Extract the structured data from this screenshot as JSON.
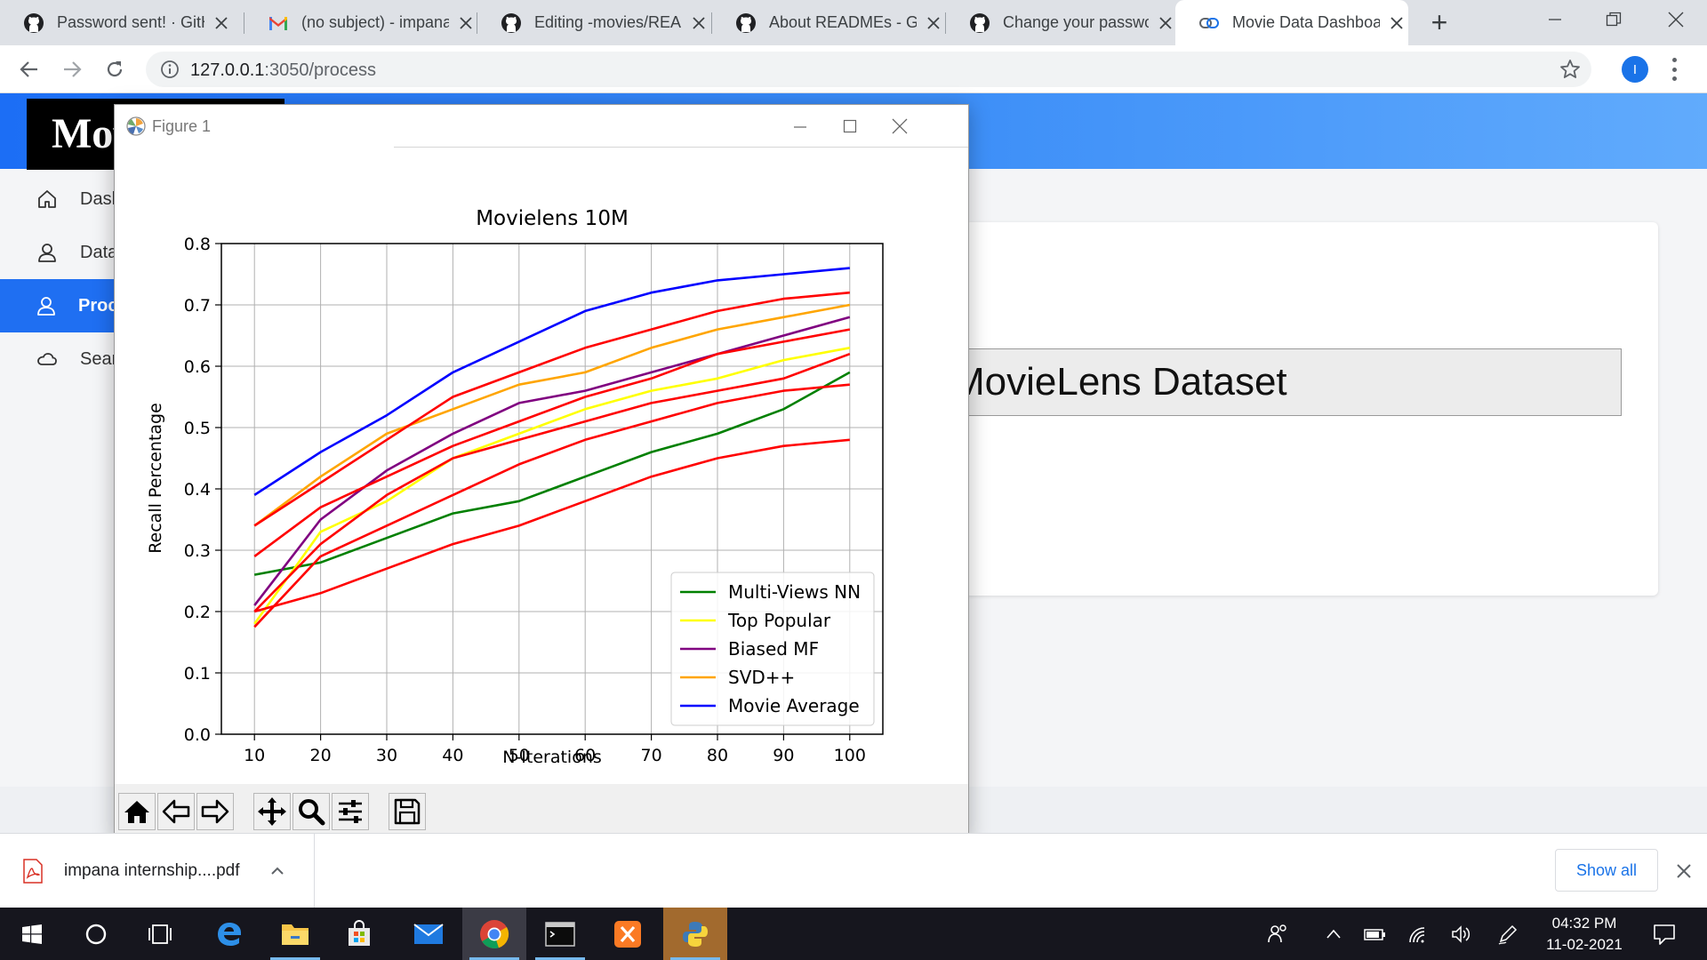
{
  "browser": {
    "tabs": [
      {
        "title": "Password sent! · GitHub",
        "icon": "github-icon",
        "active": false
      },
      {
        "title": "(no subject) - impana",
        "icon": "gmail-icon",
        "active": false
      },
      {
        "title": "Editing -movies/README",
        "icon": "github-icon",
        "active": false
      },
      {
        "title": "About READMEs - GitHub",
        "icon": "github-icon",
        "active": false
      },
      {
        "title": "Change your password",
        "icon": "github-icon",
        "active": false
      },
      {
        "title": "Movie Data Dashboard",
        "icon": "link-icon",
        "active": true
      }
    ],
    "url_host": "127.0.0.1",
    "url_path": ":3050/process",
    "profile_initial": "I"
  },
  "page": {
    "logo_text": "Movie",
    "sidebar": [
      {
        "label": "Dashboard",
        "icon": "home-icon",
        "active": false
      },
      {
        "label": "Dataset",
        "icon": "user-icon",
        "active": false
      },
      {
        "label": "Process",
        "icon": "user-icon",
        "active": true
      },
      {
        "label": "Search",
        "icon": "cloud-icon",
        "active": false
      }
    ],
    "dataset_label": "MovieLens Dataset",
    "accent_color": "#1f6ff2"
  },
  "figure_window": {
    "title": "Figure 1",
    "toolbar": [
      "home-icon",
      "back-arrow-icon",
      "forward-arrow-icon",
      "pan-icon",
      "zoom-icon",
      "configure-subplots-icon",
      "save-icon"
    ]
  },
  "chart_data": {
    "type": "line",
    "title": "Movielens 10M",
    "xlabel": "N-Iterations",
    "ylabel": "Recall Percentage",
    "x": [
      10,
      20,
      30,
      40,
      50,
      60,
      70,
      80,
      90,
      100
    ],
    "xlim": [
      5,
      105
    ],
    "ylim": [
      0.0,
      0.8
    ],
    "yticks": [
      "0.0",
      "0.1",
      "0.2",
      "0.3",
      "0.4",
      "0.5",
      "0.6",
      "0.7",
      "0.8"
    ],
    "grid": true,
    "legend_position": "lower-right",
    "series": [
      {
        "name": "Multi-Views NN",
        "color": "#008000",
        "values": [
          0.26,
          0.28,
          0.32,
          0.36,
          0.38,
          0.42,
          0.46,
          0.49,
          0.53,
          0.59
        ]
      },
      {
        "name": "Top Popular",
        "color": "#ffff00",
        "values": [
          0.18,
          0.33,
          0.38,
          0.45,
          0.49,
          0.53,
          0.56,
          0.58,
          0.61,
          0.63
        ]
      },
      {
        "name": "Biased MF",
        "color": "#800080",
        "values": [
          0.21,
          0.35,
          0.43,
          0.49,
          0.54,
          0.56,
          0.59,
          0.62,
          0.65,
          0.68
        ]
      },
      {
        "name": "SVD++",
        "color": "#ffa500",
        "values": [
          0.34,
          0.42,
          0.49,
          0.53,
          0.57,
          0.59,
          0.63,
          0.66,
          0.68,
          0.7
        ]
      },
      {
        "name": "Movie Average",
        "color": "#0000ff",
        "values": [
          0.39,
          0.46,
          0.52,
          0.59,
          0.64,
          0.69,
          0.72,
          0.74,
          0.75,
          0.76
        ]
      },
      {
        "color": "#ff0000",
        "values": [
          0.34,
          0.41,
          0.48,
          0.55,
          0.59,
          0.63,
          0.66,
          0.69,
          0.71,
          0.72
        ]
      },
      {
        "color": "#ff0000",
        "values": [
          0.29,
          0.37,
          0.42,
          0.47,
          0.51,
          0.55,
          0.58,
          0.62,
          0.64,
          0.66
        ]
      },
      {
        "color": "#ff0000",
        "values": [
          0.2,
          0.31,
          0.39,
          0.45,
          0.48,
          0.51,
          0.54,
          0.56,
          0.58,
          0.62
        ]
      },
      {
        "color": "#ff0000",
        "values": [
          0.175,
          0.29,
          0.34,
          0.39,
          0.44,
          0.48,
          0.51,
          0.54,
          0.56,
          0.57
        ]
      },
      {
        "color": "#ff0000",
        "values": [
          0.2,
          0.23,
          0.27,
          0.31,
          0.34,
          0.38,
          0.42,
          0.45,
          0.47,
          0.48
        ]
      }
    ]
  },
  "downloads": {
    "file": "impana internship....pdf",
    "show_all": "Show all"
  },
  "taskbar": {
    "time": "04:32 PM",
    "date": "11-02-2021"
  }
}
